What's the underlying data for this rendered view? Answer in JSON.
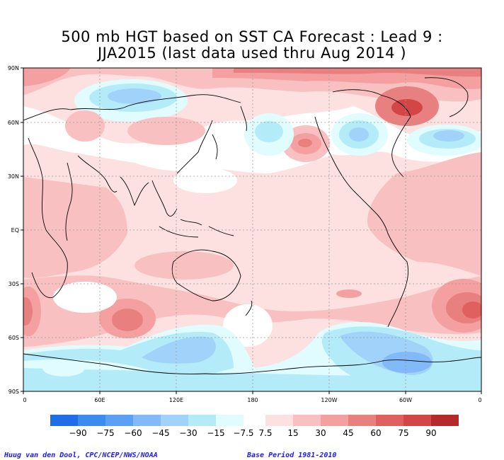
{
  "title_line1": "500 mb HGT based on SST CA Forecast : Lead 9 :",
  "title_line2": "JJA2015 (last data used thru Aug 2014 )",
  "lat_labels": [
    "90N",
    "60N",
    "30N",
    "EQ",
    "30S",
    "60S",
    "90S"
  ],
  "lon_labels": [
    "0",
    "60E",
    "120E",
    "180",
    "120W",
    "60W",
    "0"
  ],
  "colorbar": {
    "neg_colors": [
      "#1f6ee8",
      "#3c8cf0",
      "#5aa0f5",
      "#82b9f8",
      "#a0d2fa",
      "#b4ebf8",
      "#e1fcff"
    ],
    "pos_colors": [
      "#fde0e0",
      "#f8c0c0",
      "#f4a0a0",
      "#e88080",
      "#e06060",
      "#d24646",
      "#b42a2a"
    ],
    "neg_labels": [
      "−90",
      "−75",
      "−60",
      "−45",
      "−30",
      "−15",
      "−7.5"
    ],
    "pos_labels": [
      "7.5",
      "15",
      "30",
      "45",
      "60",
      "75",
      "90"
    ]
  },
  "footer_left": "Huug van den Dool, CPC/NCEP/NWS/NOAA",
  "footer_right": "Base Period 1981-2010"
}
